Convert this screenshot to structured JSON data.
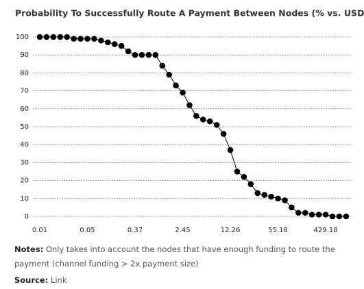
{
  "chart_data": {
    "type": "line",
    "title": "Probability To Successfully Route A Payment Between Nodes (% vs. USD)",
    "categories": [
      "0.01",
      null,
      null,
      null,
      null,
      null,
      null,
      "0.05",
      null,
      null,
      null,
      null,
      null,
      null,
      "0.37",
      null,
      null,
      null,
      null,
      null,
      null,
      "2.45",
      null,
      null,
      null,
      null,
      null,
      null,
      "12.26",
      null,
      null,
      null,
      null,
      null,
      null,
      "55.18",
      null,
      null,
      null,
      null,
      null,
      null,
      "429.18",
      null,
      null,
      null
    ],
    "values": [
      100,
      100,
      100,
      100,
      100,
      99,
      99,
      99,
      99,
      98,
      97,
      96,
      95,
      92,
      90,
      90,
      90,
      90,
      84,
      79,
      73,
      69,
      62,
      56,
      54,
      53,
      51,
      46,
      37,
      25,
      22,
      18,
      13,
      12,
      11,
      10,
      9,
      5,
      2,
      2,
      1,
      1,
      1,
      0,
      0,
      0
    ],
    "color": "#000000",
    "ylim": [
      0,
      100
    ],
    "yticks": [
      0,
      10,
      20,
      30,
      40,
      50,
      60,
      70,
      80,
      90,
      100
    ],
    "grid": true
  },
  "notes_label": "Notes:",
  "notes": "Only takes into account the nodes that have enough funding to route the payment (channel funding > 2x payment size)",
  "source_label": "Source:",
  "source": "Link"
}
